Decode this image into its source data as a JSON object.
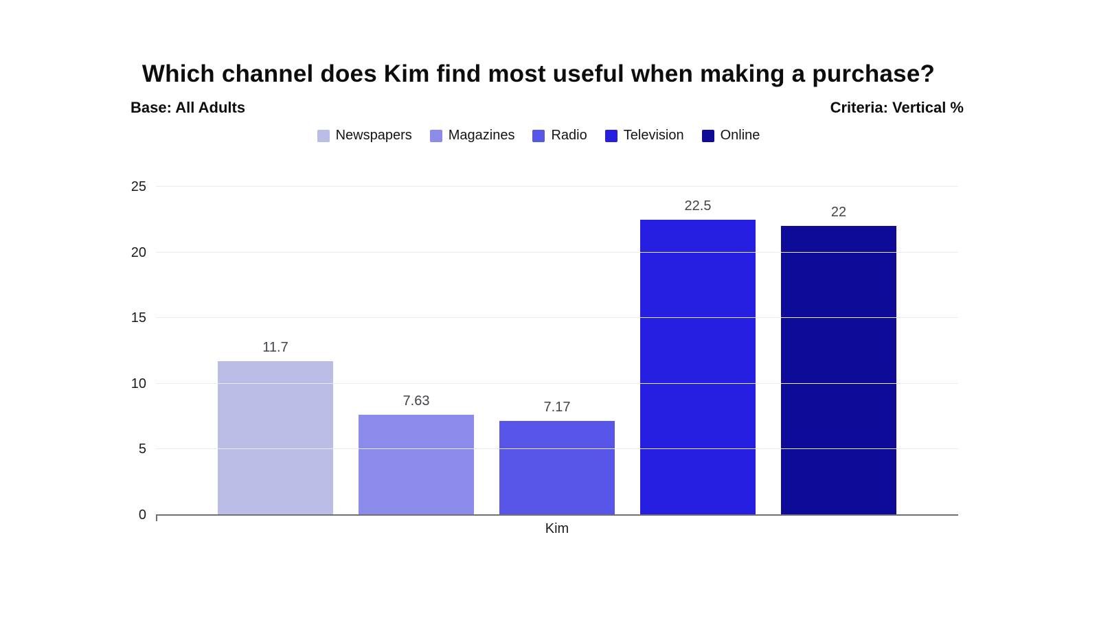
{
  "chart_data": {
    "type": "bar",
    "title": "Which channel does Kim find most useful when making a purchase?",
    "subtitle_left": "Base: All Adults",
    "subtitle_right": "Criteria: Vertical %",
    "categories": [
      "Kim"
    ],
    "series": [
      {
        "name": "Newspapers",
        "values": [
          11.7
        ],
        "label": "11.7",
        "color": "#bcbde7"
      },
      {
        "name": "Magazines",
        "values": [
          7.63
        ],
        "label": "7.63",
        "color": "#8b8bec"
      },
      {
        "name": "Radio",
        "values": [
          7.17
        ],
        "label": "7.17",
        "color": "#5756e9"
      },
      {
        "name": "Television",
        "values": [
          22.5
        ],
        "label": "22.5",
        "color": "#261fe2"
      },
      {
        "name": "Online",
        "values": [
          22
        ],
        "label": "22",
        "color": "#0e0b98"
      }
    ],
    "xlabel": "",
    "ylabel": "",
    "ylim": [
      0,
      25
    ],
    "yticks": [
      0,
      5,
      10,
      15,
      20,
      25
    ],
    "grid": true,
    "legend_position": "top",
    "style": {
      "grid_color": "#e8eaf6",
      "axis_color": "#707070",
      "value_label_color": "#404347",
      "tick_label_color": "#1b1b1b",
      "background": "#ffffff"
    }
  }
}
